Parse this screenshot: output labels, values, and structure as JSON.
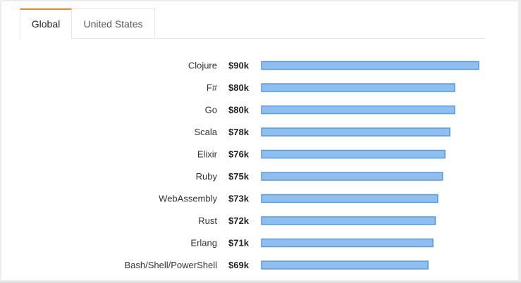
{
  "tabs": [
    {
      "label": "Global",
      "active": true
    },
    {
      "label": "United States",
      "active": false
    }
  ],
  "colors": {
    "accent": "#f48024",
    "bar_fill": "#8fbff0",
    "bar_stroke": "#5b9ad6"
  },
  "chart_data": {
    "type": "bar",
    "orientation": "horizontal",
    "categories": [
      "Clojure",
      "F#",
      "Go",
      "Scala",
      "Elixir",
      "Ruby",
      "WebAssembly",
      "Rust",
      "Erlang",
      "Bash/Shell/PowerShell"
    ],
    "values": [
      90,
      80,
      80,
      78,
      76,
      75,
      73,
      72,
      71,
      69
    ],
    "value_labels": [
      "$90k",
      "$80k",
      "$80k",
      "$78k",
      "$76k",
      "$75k",
      "$73k",
      "$72k",
      "$71k",
      "$69k"
    ],
    "title": "",
    "xlabel": "",
    "ylabel": "",
    "xlim": [
      0,
      90
    ],
    "grid": false,
    "legend": "none"
  }
}
